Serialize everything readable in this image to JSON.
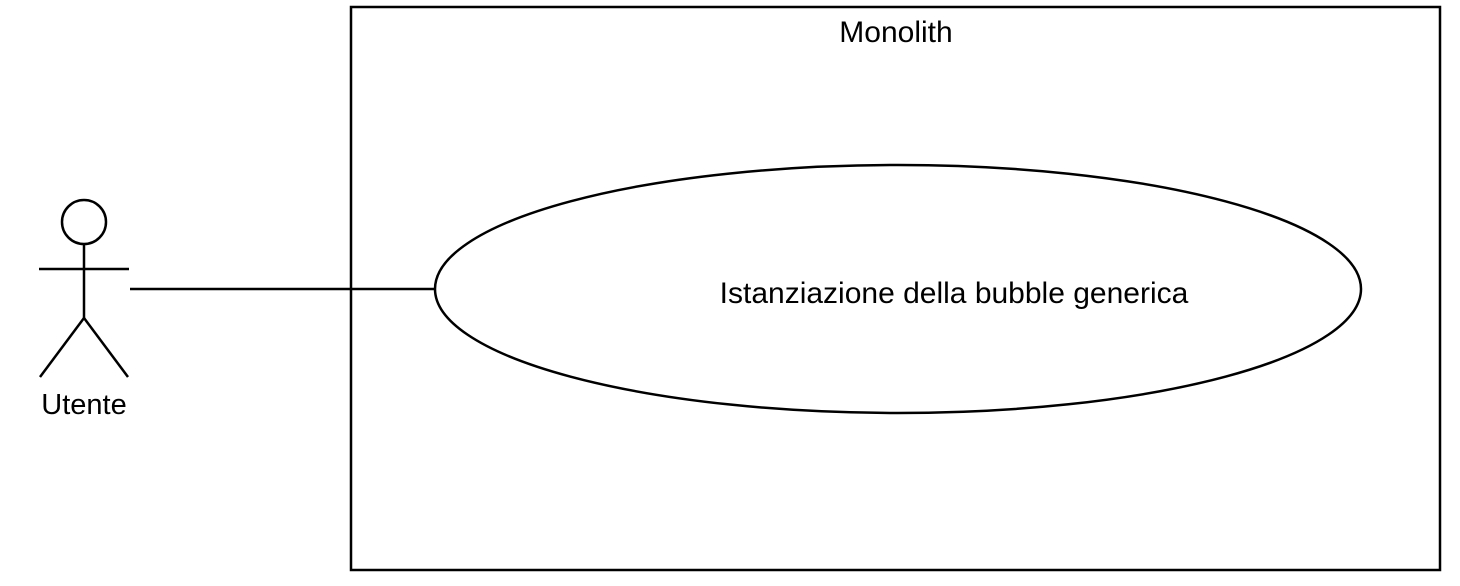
{
  "diagram": {
    "type": "use-case",
    "system": {
      "title": "Monolith"
    },
    "actor": {
      "name": "Utente"
    },
    "use_case": {
      "label": "Istanziazione della bubble generica"
    },
    "associations": [
      {
        "from": "Utente",
        "to": "Istanziazione della bubble generica"
      }
    ],
    "colors": {
      "line": "#000000",
      "background": "#ffffff"
    }
  }
}
